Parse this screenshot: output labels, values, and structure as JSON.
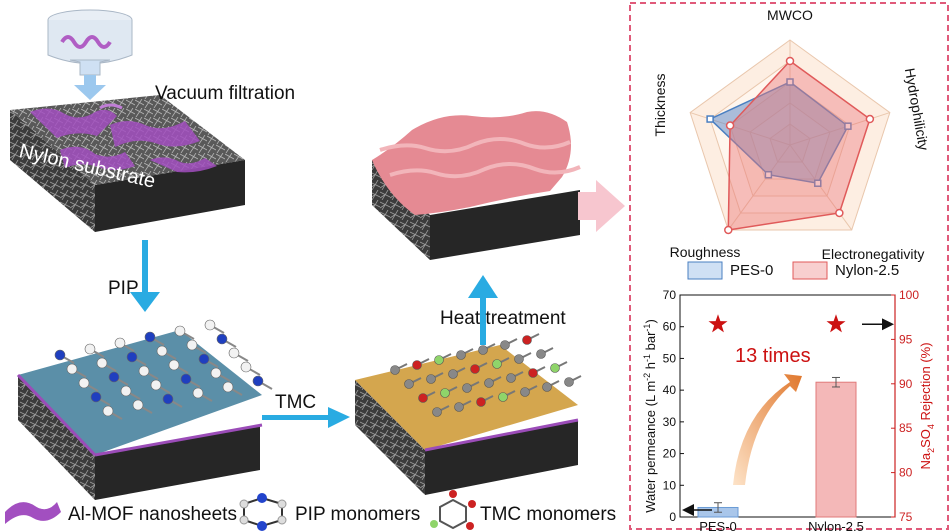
{
  "steps": {
    "vacuum_filtration": "Vacuum filtration",
    "substrate": "Nylon substrate",
    "pip": "PIP",
    "tmc": "TMC",
    "heat_treatment": "Heat treatment"
  },
  "legend_bottom": {
    "mof": "Al-MOF nanosheets",
    "pip": "PIP monomers",
    "tmc": "TMC monomers"
  },
  "radar": {
    "axes": [
      "MWCO",
      "Hydrophilicity",
      "Electronegativity",
      "Roughness",
      "Thickness"
    ],
    "series": [
      {
        "name": "PES-0",
        "color": "#4a7fc1",
        "values": [
          0.6,
          0.58,
          0.45,
          0.35,
          0.8
        ]
      },
      {
        "name": "Nylon-2.5",
        "color": "#e05a5a",
        "values": [
          0.8,
          0.8,
          0.8,
          1.0,
          0.6
        ]
      }
    ]
  },
  "chart_data": {
    "type": "bar",
    "categories": [
      "PES-0",
      "Nylon-2.5"
    ],
    "values": [
      3.0,
      42.5
    ],
    "errors": [
      1.5,
      1.5
    ],
    "ylabel": "Water permeance (L m-2 h-1 bar-1)",
    "ylim": [
      0,
      70
    ],
    "yticks": [
      0,
      10,
      20,
      30,
      40,
      50,
      60,
      70
    ],
    "y2label": "Na2SO4 Rejection (%)",
    "y2lim": [
      75,
      100
    ],
    "y2ticks": [
      75,
      80,
      85,
      90,
      95,
      100
    ],
    "rejection": [
      96.7,
      96.7
    ],
    "annotation": "13 times",
    "bar_colors": [
      "#a9c6ea",
      "#f4b8b8"
    ]
  },
  "labels": {
    "ylabel_main": "Water permeance (L m",
    "ylabel_tail": " bar",
    "y2_prefix": "Na",
    "y2_suffix": "SO",
    "y2_tail": " Rejection (%)",
    "annotation": "13 times"
  }
}
